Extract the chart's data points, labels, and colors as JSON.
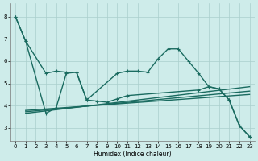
{
  "background_color": "#ceecea",
  "grid_color": "#aacfcc",
  "line_color": "#1a6b60",
  "xlabel": "Humidex (Indice chaleur)",
  "ylim": [
    2.4,
    8.6
  ],
  "xlim": [
    -0.5,
    23.5
  ],
  "yticks": [
    3,
    4,
    5,
    6,
    7,
    8
  ],
  "xticks": [
    0,
    1,
    2,
    3,
    4,
    5,
    6,
    7,
    8,
    9,
    10,
    11,
    12,
    13,
    14,
    15,
    16,
    17,
    18,
    19,
    20,
    21,
    22,
    23
  ],
  "line_jagged_x": [
    0,
    1,
    3,
    4,
    5,
    6,
    7,
    10,
    11,
    12,
    13,
    14,
    15,
    16,
    17,
    18,
    19,
    20,
    21,
    22,
    23
  ],
  "line_jagged_y": [
    8.0,
    6.9,
    5.45,
    5.55,
    5.5,
    5.5,
    4.25,
    5.45,
    5.55,
    5.55,
    5.5,
    6.1,
    6.55,
    6.55,
    6.0,
    5.45,
    4.85,
    4.75,
    4.25,
    3.1,
    2.6
  ],
  "line_drop_x": [
    0,
    1,
    3,
    4,
    5,
    6,
    7,
    8,
    9,
    10,
    11,
    18,
    19,
    20,
    21,
    22,
    23
  ],
  "line_drop_y": [
    8.0,
    6.9,
    3.65,
    3.9,
    5.45,
    5.5,
    4.25,
    4.2,
    4.15,
    4.3,
    4.45,
    4.7,
    4.85,
    4.75,
    4.25,
    3.1,
    2.6
  ],
  "trend1_x": [
    1,
    23
  ],
  "trend1_y": [
    3.65,
    4.85
  ],
  "trend2_x": [
    1,
    23
  ],
  "trend2_y": [
    3.72,
    4.65
  ],
  "trend3_x": [
    1,
    23
  ],
  "trend3_y": [
    3.78,
    4.5
  ],
  "lw": 1.0,
  "ms": 3.5
}
